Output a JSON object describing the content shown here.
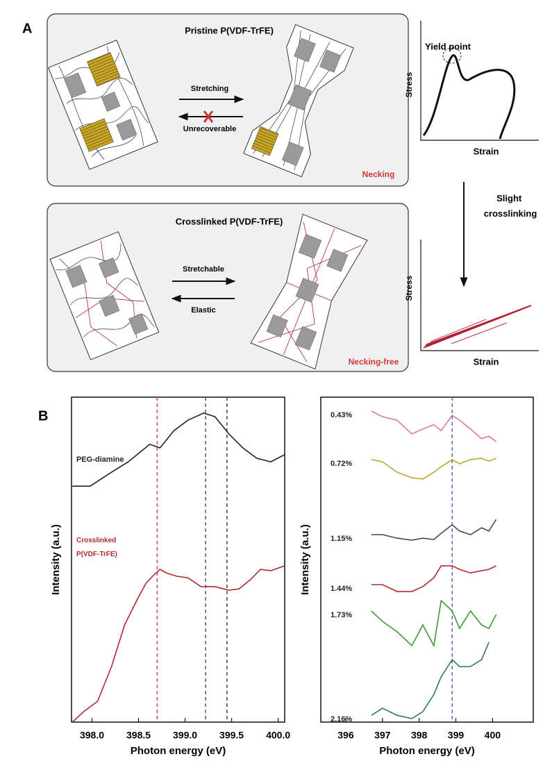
{
  "panel_a": {
    "label": "A",
    "top": {
      "title": "Pristine P(VDF-TrFE)",
      "forward": "Stretching",
      "backward": "Unrecoverable",
      "result": "Necking"
    },
    "bottom": {
      "title": "Crosslinked P(VDF-TrFE)",
      "forward": "Stretchable",
      "backward": "Elastic",
      "result": "Necking-free"
    },
    "curve_top": {
      "annotation": "Yield point",
      "ylabel": "Stress",
      "xlabel": "Strain"
    },
    "transition": "Slight crosslinking",
    "curve_bottom": {
      "ylabel": "Stress",
      "xlabel": "Strain"
    }
  },
  "panel_b": {
    "label": "B"
  },
  "chart_data": [
    {
      "type": "line",
      "xlabel": "Photon energy (eV)",
      "ylabel": "Intensity (a.u.)",
      "xlim": [
        397.78,
        400.07
      ],
      "ylim": [
        0,
        1
      ],
      "xticks": [
        {
          "value": 398,
          "label": "398.0"
        },
        {
          "value": 398.5,
          "label": "398.5"
        },
        {
          "value": 399,
          "label": "399.0"
        },
        {
          "value": 399.5,
          "label": "399.5"
        },
        {
          "value": 400,
          "label": "400.0"
        }
      ],
      "vlines": [
        {
          "value": 398.7,
          "color": "#e8405a"
        },
        {
          "value": 399.22,
          "color": "#555577"
        },
        {
          "value": 399.45,
          "color": "#444444"
        }
      ],
      "series": [
        {
          "name": "PEG-diamine",
          "color": "#222222",
          "x": [
            397.79,
            397.98,
            398.21,
            398.39,
            398.62,
            398.73,
            398.88,
            399.03,
            399.2,
            399.32,
            399.47,
            399.62,
            399.77,
            399.92,
            400.07
          ],
          "values": [
            0.726,
            0.726,
            0.769,
            0.801,
            0.855,
            0.844,
            0.897,
            0.929,
            0.951,
            0.94,
            0.887,
            0.844,
            0.812,
            0.801,
            0.823
          ]
        },
        {
          "name": "Crosslinked P(VDF-TrFE)",
          "color": "#b02a30",
          "x": [
            397.79,
            397.91,
            398.06,
            398.21,
            398.35,
            398.5,
            398.58,
            398.65,
            398.73,
            398.8,
            398.91,
            399.03,
            399.17,
            399.32,
            399.47,
            399.58,
            399.7,
            399.81,
            399.92,
            400.07
          ],
          "values": [
            0,
            0.032,
            0.064,
            0.171,
            0.299,
            0.385,
            0.427,
            0.449,
            0.47,
            0.459,
            0.449,
            0.444,
            0.417,
            0.417,
            0.406,
            0.41,
            0.438,
            0.47,
            0.466,
            0.481
          ]
        }
      ]
    },
    {
      "type": "line",
      "xlabel": "Photon energy (eV)",
      "ylabel": "Intensity (a.u.)",
      "xlim": [
        395.32,
        401.11
      ],
      "ylim": [
        0,
        1
      ],
      "xticks": [
        396,
        397,
        398,
        399,
        400
      ],
      "vlines": [
        {
          "value": 398.9,
          "color": "#5566cc"
        }
      ],
      "x": [
        396.7,
        397.0,
        397.4,
        397.8,
        398.1,
        398.4,
        398.6,
        398.9,
        399.1,
        399.4,
        399.7,
        399.9,
        400.1
      ],
      "series": [
        {
          "name": "0.43%",
          "color": "#e07b8a",
          "values": [
            0.957,
            0.94,
            0.929,
            0.887,
            0.902,
            0.915,
            0.897,
            0.944,
            0.929,
            0.902,
            0.872,
            0.88,
            0.863
          ]
        },
        {
          "name": "0.72%",
          "color": "#b8a82a",
          "values": [
            0.808,
            0.801,
            0.769,
            0.752,
            0.748,
            0.769,
            0.786,
            0.808,
            0.795,
            0.808,
            0.812,
            0.803,
            0.812
          ]
        },
        {
          "name": "1.15%",
          "color": "#404a55",
          "values": [
            0.577,
            0.577,
            0.566,
            0.56,
            0.566,
            0.562,
            0.581,
            0.607,
            0.588,
            0.577,
            0.598,
            0.588,
            0.624
          ]
        },
        {
          "name": "1.44%",
          "color": "#b02a30",
          "values": [
            0.423,
            0.423,
            0.402,
            0.402,
            0.417,
            0.444,
            0.481,
            0.481,
            0.47,
            0.459,
            0.466,
            0.47,
            0.481
          ]
        },
        {
          "name": "1.73%",
          "color": "#3a9a3a",
          "values": [
            0.342,
            0.31,
            0.278,
            0.235,
            0.299,
            0.235,
            0.374,
            0.342,
            0.288,
            0.342,
            0.299,
            0.288,
            0.331
          ]
        },
        {
          "name": "2.16%",
          "color": "#2e7a5a",
          "values": [
            0.021,
            0.043,
            0.021,
            0.011,
            0.032,
            0.085,
            0.139,
            0.192,
            0.171,
            0.171,
            0.192,
            0.246,
            null
          ]
        }
      ]
    }
  ]
}
